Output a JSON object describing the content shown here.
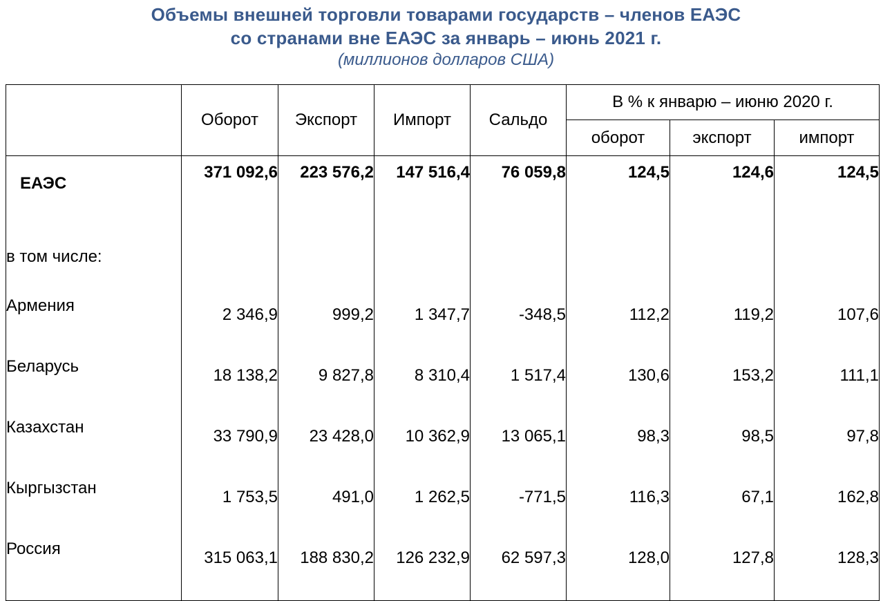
{
  "title": {
    "line1": "Объемы внешней торговли товарами государств – членов ЕАЭС",
    "line2": "со странами вне ЕАЭС за январь – июнь 2021 г.",
    "units": "(миллионов долларов США)",
    "color": "#3a5a8c"
  },
  "table": {
    "headers": {
      "turnover": "Оборот",
      "export": "Экспорт",
      "import": "Импорт",
      "balance": "Сальдо",
      "percent_group": "В % к январю – июню 2020 г.",
      "pct_turnover": "оборот",
      "pct_export": "экспорт",
      "pct_import": "импорт"
    },
    "total": {
      "name": "ЕАЭС",
      "values": [
        "371 092,6",
        "223 576,2",
        "147 516,4",
        "76 059,8",
        "124,5",
        "124,6",
        "124,5"
      ]
    },
    "subheading": "в том числе:",
    "rows": [
      {
        "name": "Армения",
        "values": [
          "2 346,9",
          "999,2",
          "1 347,7",
          "-348,5",
          "112,2",
          "119,2",
          "107,6"
        ]
      },
      {
        "name": "Беларусь",
        "values": [
          "18 138,2",
          "9 827,8",
          "8 310,4",
          "1 517,4",
          "130,6",
          "153,2",
          "111,1"
        ]
      },
      {
        "name": "Казахстан",
        "values": [
          "33 790,9",
          "23 428,0",
          "10 362,9",
          "13 065,1",
          "98,3",
          "98,5",
          "97,8"
        ]
      },
      {
        "name": "Кыргызстан",
        "values": [
          "1 753,5",
          "491,0",
          "1 262,5",
          "-771,5",
          "116,3",
          "67,1",
          "162,8"
        ]
      },
      {
        "name": "Россия",
        "values": [
          "315 063,1",
          "188 830,2",
          "126 232,9",
          "62 597,3",
          "128,0",
          "127,8",
          "128,3"
        ]
      }
    ]
  }
}
